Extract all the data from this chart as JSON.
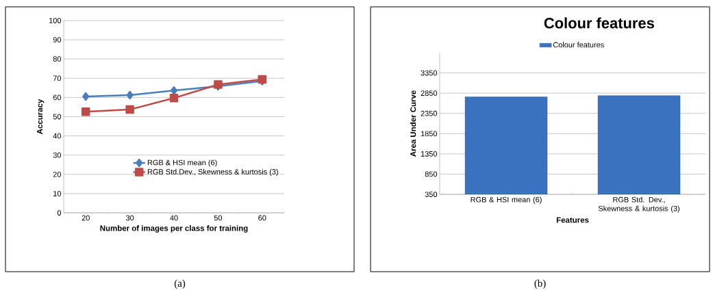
{
  "chart_data": [
    {
      "type": "line",
      "categories": [
        "20",
        "30",
        "40",
        "50",
        "60"
      ],
      "xlabel": "Number of images per class for training",
      "ylabel": "Accuracy",
      "ylim": [
        0,
        100
      ],
      "yticks": [
        0,
        10,
        20,
        30,
        40,
        50,
        60,
        70,
        80,
        90,
        100
      ],
      "grid": "y",
      "legend": "bottom right",
      "line_style": "solid",
      "series": [
        {
          "name": "RGB & HSI mean (6)",
          "color": "#4a7ebb",
          "marker": "diamond",
          "values": [
            60.5,
            61.2,
            63.6,
            65.8,
            68.5
          ]
        },
        {
          "name": "RGB Std.Dev., Skewness & kurtosis (3)",
          "color": "#be4b48",
          "marker": "square",
          "values": [
            52.6,
            53.7,
            59.7,
            66.7,
            69.4
          ]
        }
      ],
      "annotations": [
        "(a)"
      ]
    },
    {
      "type": "bar",
      "title": "Colour features",
      "categories": [
        "RGB & HSI mean (6)",
        "RGB Std. Dev., Skewness & kurtosis (3)"
      ],
      "xlabel": "Features",
      "ylabel": "Area Under Curve",
      "ylim": [
        350,
        3850
      ],
      "yticks": [
        350,
        850,
        1350,
        1850,
        2350,
        2850,
        3350
      ],
      "grid": "y",
      "legend": "top",
      "series": [
        {
          "name": "Colour features",
          "color": "#3a72c0",
          "values": [
            2760,
            2790
          ]
        }
      ],
      "annotations": [
        "(b)"
      ]
    }
  ]
}
